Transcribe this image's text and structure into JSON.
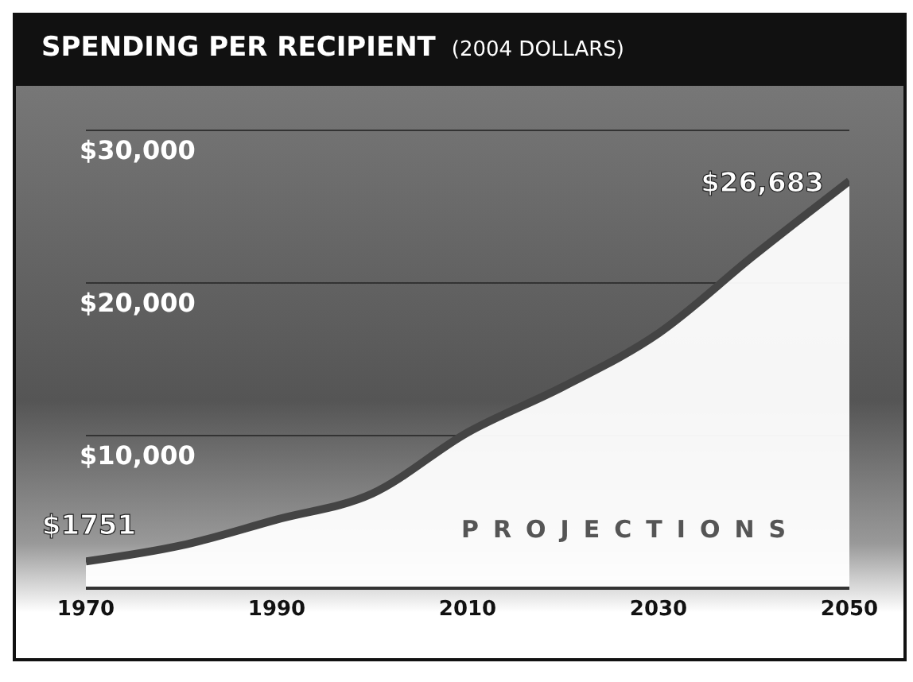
{
  "chart_data": {
    "type": "area",
    "title": "SPENDING PER RECIPIENT",
    "subtitle": "(2004 DOLLARS)",
    "x": [
      1970,
      1980,
      1990,
      2000,
      2010,
      2020,
      2030,
      2040,
      2050
    ],
    "series": [
      {
        "color": "#ffffff",
        "values": [
          1751,
          2800,
          4500,
          6200,
          10200,
          13200,
          16700,
          21800,
          26683
        ],
        "value_labels": [
          "$1751",
          null,
          null,
          null,
          null,
          null,
          null,
          null,
          "$26,683"
        ]
      }
    ],
    "xlim": [
      1970,
      2050
    ],
    "xticks": [
      1970,
      1990,
      2010,
      2030,
      2050
    ],
    "ylim": [
      0,
      30000
    ],
    "yticks": [
      {
        "value": 10000,
        "label": "$10,000"
      },
      {
        "value": 20000,
        "label": "$20,000"
      },
      {
        "value": 30000,
        "label": "$30,000"
      }
    ],
    "grid": "y",
    "marker": "none",
    "annotations": [
      "PROJECTIONS"
    ]
  }
}
